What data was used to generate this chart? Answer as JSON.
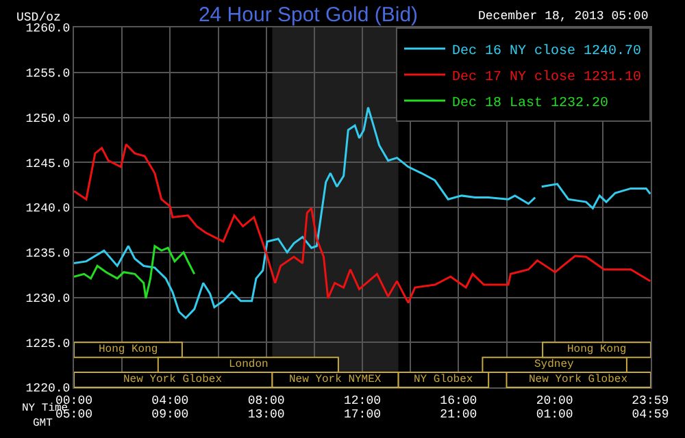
{
  "chart_data": {
    "type": "line",
    "title": "24 Hour Spot Gold (Bid)",
    "subtitle": "December 18, 2013 05:00",
    "ylabel": "USD/oz",
    "xlabel": "NY Time",
    "x2label": "GMT",
    "xlim": [
      0,
      24
    ],
    "ylim": [
      1220,
      1260
    ],
    "xticks": [
      {
        "value": 0,
        "label": "00:00"
      },
      {
        "value": 2,
        "label": null
      },
      {
        "value": 4,
        "label": "04:00"
      },
      {
        "value": 6,
        "label": null
      },
      {
        "value": 8,
        "label": "08:00"
      },
      {
        "value": 10,
        "label": null
      },
      {
        "value": 12,
        "label": "12:00"
      },
      {
        "value": 14,
        "label": null
      },
      {
        "value": 16,
        "label": "16:00"
      },
      {
        "value": 18,
        "label": null
      },
      {
        "value": 20,
        "label": "20:00"
      },
      {
        "value": 22,
        "label": null
      },
      {
        "value": 23.98,
        "label": "23:59"
      }
    ],
    "x2lim": [
      "2013-12-18T05:00",
      "2013-12-19T05:00"
    ],
    "x2ticks": [
      {
        "value": "2013-12-18T05:00",
        "label": "05:00"
      },
      {
        "value": "2013-12-18T09:00",
        "label": "09:00"
      },
      {
        "value": "2013-12-18T13:00",
        "label": "13:00"
      },
      {
        "value": "2013-12-18T17:00",
        "label": "17:00"
      },
      {
        "value": "2013-12-18T21:00",
        "label": "21:00"
      },
      {
        "value": "2013-12-19T01:00",
        "label": "01:00"
      },
      {
        "value": "2013-12-19T04:59",
        "label": "04:59"
      }
    ],
    "yticks": [
      {
        "value": 1220,
        "label": "1220.0"
      },
      {
        "value": 1225,
        "label": "1225.0"
      },
      {
        "value": 1230,
        "label": "1230.0"
      },
      {
        "value": 1235,
        "label": "1235.0"
      },
      {
        "value": 1240,
        "label": "1240.0"
      },
      {
        "value": 1245,
        "label": "1245.0"
      },
      {
        "value": 1250,
        "label": "1250.0"
      },
      {
        "value": 1255,
        "label": "1255.0"
      },
      {
        "value": 1260,
        "label": "1260.0"
      }
    ],
    "grid": true,
    "legend": "top right",
    "marker": "none",
    "line_style": "solid",
    "bands": [
      {
        "axis": "x",
        "from": 8.25,
        "to": 13.5,
        "color": "#1e1e1e"
      },
      {
        "axis": "x",
        "from": 0,
        "to": 4.5,
        "label": "Hong Kong",
        "color": "#c8a840"
      },
      {
        "axis": "x",
        "from": 3.5,
        "to": 11,
        "label": "London",
        "color": "#c8a840"
      },
      {
        "axis": "x",
        "from": 0,
        "to": 8.25,
        "label": "New York Globex",
        "color": "#c8a840"
      },
      {
        "axis": "x",
        "from": 8.25,
        "to": 13.5,
        "label": "New York NYMEX",
        "color": "#c8a840"
      },
      {
        "axis": "x",
        "from": 13.5,
        "to": 17.25,
        "label": "NY Globex",
        "color": "#c8a840"
      },
      {
        "axis": "x",
        "from": 17,
        "to": 23,
        "label": "Sydney",
        "color": "#c8a840"
      },
      {
        "axis": "x",
        "from": 19.5,
        "to": 24,
        "label": "Hong Kong",
        "color": "#c8a840"
      },
      {
        "axis": "x",
        "from": 18,
        "to": 24,
        "label": "New York Globex",
        "color": "#c8a840"
      }
    ],
    "series": [
      {
        "name": "Dec 16 NY close 1240.70",
        "color": "#33ccee",
        "x": [
          0,
          0.51,
          1.25,
          1.8,
          2.26,
          2.53,
          2.9,
          3.36,
          3.82,
          4.1,
          4.37,
          4.65,
          5.01,
          5.38,
          5.66,
          5.84,
          6.21,
          6.57,
          6.94,
          7.4,
          7.58,
          7.86,
          8.04,
          8.5,
          8.87,
          9.15,
          9.51,
          9.88,
          10.1,
          10.48,
          10.67,
          10.94,
          11.22,
          11.41,
          11.69,
          11.87,
          12.06,
          12.24,
          12.43,
          12.7,
          13.07,
          13.44,
          13.91,
          14.46,
          15.02,
          15.57,
          16.13,
          16.69,
          17.24,
          18.07,
          18.35,
          18.91,
          19.19,
          19.3,
          19.46,
          20.11,
          20.57,
          21.31,
          21.59,
          21.87,
          22.15,
          22.52,
          23.17,
          23.81,
          23.98
        ],
        "values": [
          1233.8,
          1234.0,
          1235.2,
          1233.5,
          1235.7,
          1234.3,
          1233.5,
          1233.3,
          1232.1,
          1230.6,
          1228.4,
          1227.7,
          1228.7,
          1231.6,
          1230.4,
          1228.9,
          1229.6,
          1230.6,
          1229.6,
          1229.6,
          1232.1,
          1233.0,
          1236.2,
          1236.5,
          1235.0,
          1236.0,
          1236.7,
          1235.5,
          1235.7,
          1242.8,
          1243.8,
          1242.3,
          1243.5,
          1248.6,
          1249.1,
          1247.7,
          1248.6,
          1251.1,
          1249.4,
          1246.9,
          1245.2,
          1245.5,
          1244.5,
          1243.8,
          1243.0,
          1240.9,
          1241.3,
          1241.1,
          1241.1,
          1240.9,
          1241.3,
          1240.4,
          1241.1,
          null,
          1242.3,
          1242.6,
          1240.9,
          1240.6,
          1239.9,
          1241.3,
          1240.6,
          1241.6,
          1242.1,
          1242.1,
          1241.5
        ]
      },
      {
        "name": "Dec 17 NY close 1231.10",
        "color": "#ee1111",
        "x": [
          0,
          0.51,
          0.88,
          1.16,
          1.43,
          1.95,
          2.17,
          2.53,
          2.94,
          3.36,
          3.64,
          4.0,
          4.1,
          4.74,
          5.11,
          5.47,
          6.21,
          6.67,
          7.03,
          7.49,
          7.86,
          8.01,
          8.37,
          8.6,
          9.15,
          9.51,
          9.7,
          9.88,
          10.1,
          10.39,
          10.57,
          10.85,
          11.22,
          11.5,
          11.87,
          12.61,
          13.07,
          13.44,
          13.91,
          14.19,
          15.02,
          15.67,
          16.31,
          16.59,
          17.06,
          18.07,
          18.17,
          18.91,
          19.28,
          20.02,
          20.85,
          21.31,
          22.06,
          23.17,
          23.98
        ],
        "values": [
          1241.8,
          1240.9,
          1246.0,
          1246.6,
          1245.2,
          1244.5,
          1247.0,
          1246.0,
          1245.7,
          1243.8,
          1240.9,
          1240.1,
          1238.9,
          1239.1,
          1237.9,
          1237.2,
          1236.2,
          1239.1,
          1237.9,
          1238.9,
          1236.0,
          1234.8,
          1231.6,
          1233.5,
          1234.5,
          1233.8,
          1239.4,
          1239.9,
          1236.5,
          1234.5,
          1229.9,
          1231.6,
          1231.1,
          1233.1,
          1230.9,
          1232.6,
          1230.1,
          1231.8,
          1229.4,
          1231.1,
          1231.4,
          1232.3,
          1231.1,
          1232.6,
          1231.4,
          1231.4,
          1232.6,
          1233.1,
          1234.1,
          1232.8,
          1234.6,
          1234.5,
          1233.1,
          1233.1,
          1231.8
        ]
      },
      {
        "name": "Dec 18 Last 1232.20",
        "color": "#22dd22",
        "x": [
          0,
          0.42,
          0.7,
          0.97,
          1.34,
          1.8,
          2.07,
          2.53,
          2.9,
          2.99,
          3.18,
          3.36,
          3.64,
          3.91,
          4.19,
          4.56,
          4.74,
          5.01
        ],
        "values": [
          1232.3,
          1232.6,
          1232.1,
          1233.5,
          1232.8,
          1232.1,
          1232.8,
          1232.6,
          1231.6,
          1229.9,
          1232.1,
          1235.7,
          1235.2,
          1235.5,
          1234.0,
          1235.0,
          1234.0,
          1232.6
        ]
      }
    ]
  }
}
